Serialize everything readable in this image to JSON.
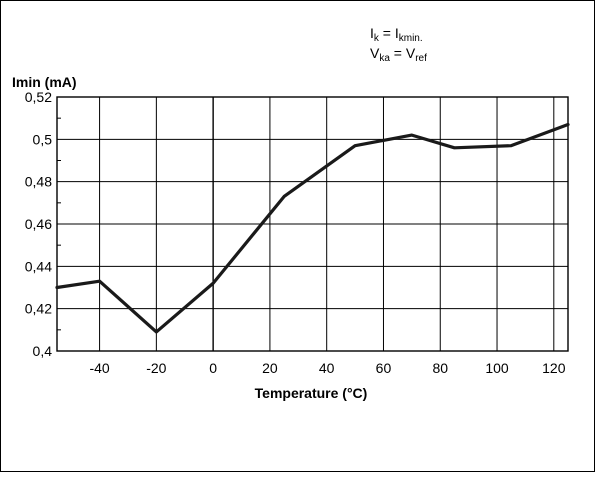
{
  "chart_data": {
    "type": "line",
    "ylabel": "Imin (mA)",
    "xlabel": "Temperature (°C)",
    "annotations": [
      {
        "main": "I",
        "sub": "k",
        "mid": " = I",
        "sub2": "kmin."
      },
      {
        "main": "V",
        "sub": "ka",
        "mid": " = V",
        "sub2": "ref"
      }
    ],
    "xlim": [
      -55,
      125
    ],
    "ylim": [
      0.4,
      0.52
    ],
    "grid": true,
    "x_ticks": [
      -40,
      -20,
      0,
      20,
      40,
      60,
      80,
      100,
      120
    ],
    "x_tick_labels": [
      "-40",
      "-20",
      "0",
      "20",
      "40",
      "60",
      "80",
      "100",
      "120"
    ],
    "y_ticks": [
      0.4,
      0.42,
      0.44,
      0.46,
      0.48,
      0.5,
      0.52
    ],
    "y_tick_labels": [
      "0,4",
      "0,42",
      "0,44",
      "0,46",
      "0,48",
      "0,5",
      "0,52"
    ],
    "series": [
      {
        "x": [
          -55,
          -40,
          -20,
          0,
          25,
          50,
          70,
          85,
          105,
          125
        ],
        "y": [
          0.43,
          0.433,
          0.409,
          0.432,
          0.473,
          0.497,
          0.502,
          0.496,
          0.497,
          0.507
        ]
      }
    ]
  }
}
